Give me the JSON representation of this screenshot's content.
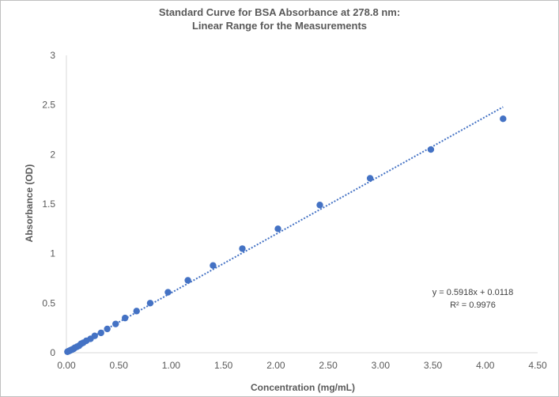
{
  "chart_data": {
    "type": "scatter",
    "title_line1": "Standard Curve for BSA Absorbance at 278.8 nm:",
    "title_line2": "Linear Range for the Measurements",
    "xlabel": "Concentration (mg/mL)",
    "ylabel": "Absorbance (OD)",
    "xlim": [
      0,
      4.5
    ],
    "ylim": [
      0,
      3
    ],
    "x_ticks": [
      "0.00",
      "0.50",
      "1.00",
      "1.50",
      "2.00",
      "2.50",
      "3.00",
      "3.50",
      "4.00",
      "4.50"
    ],
    "y_ticks": [
      "0",
      "0.5",
      "1",
      "1.5",
      "2",
      "2.5",
      "3"
    ],
    "grid": false,
    "marker_color": "#4472c4",
    "series": [
      {
        "x": [
          0.01,
          0.02,
          0.03,
          0.04,
          0.05,
          0.06,
          0.07,
          0.08,
          0.1,
          0.12,
          0.14,
          0.16,
          0.19,
          0.23,
          0.27,
          0.33,
          0.39,
          0.47,
          0.56,
          0.67,
          0.8,
          0.97,
          1.16,
          1.4,
          1.68,
          2.02,
          2.42,
          2.9,
          3.48,
          4.17
        ],
        "y": [
          0.01,
          0.015,
          0.02,
          0.025,
          0.03,
          0.035,
          0.04,
          0.05,
          0.06,
          0.07,
          0.09,
          0.1,
          0.12,
          0.14,
          0.17,
          0.2,
          0.24,
          0.29,
          0.35,
          0.42,
          0.5,
          0.61,
          0.73,
          0.88,
          1.05,
          1.25,
          1.49,
          1.76,
          2.05,
          2.36
        ]
      }
    ],
    "trendline": {
      "slope": 0.5918,
      "intercept": 0.0118,
      "x_range": [
        0,
        4.17
      ],
      "style": "dotted",
      "equation": "y = 0.5918x + 0.0118",
      "r_squared": "R² = 0.9976"
    }
  }
}
